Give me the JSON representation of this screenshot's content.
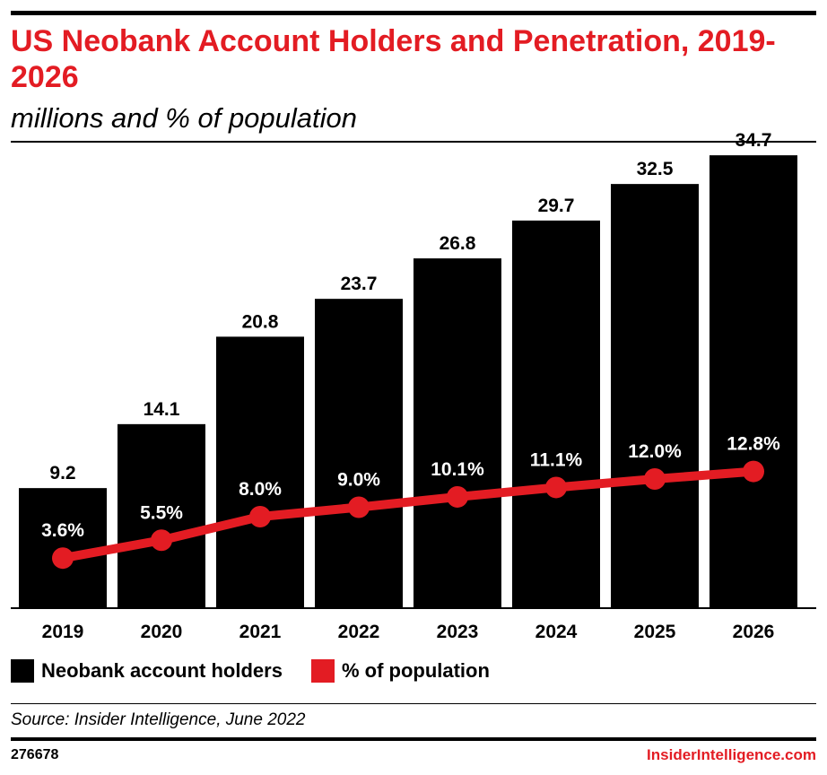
{
  "header": {
    "title": "US Neobank Account Holders and Penetration, 2019-2026",
    "subtitle": "millions and % of population"
  },
  "chart_data": {
    "type": "bar",
    "title": "US Neobank Account Holders and Penetration, 2019-2026",
    "subtitle": "millions and % of population",
    "categories": [
      "2019",
      "2020",
      "2021",
      "2022",
      "2023",
      "2024",
      "2025",
      "2026"
    ],
    "series": [
      {
        "name": "Neobank account holders",
        "type": "bar",
        "color": "#000000",
        "values": [
          9.2,
          14.1,
          20.8,
          23.7,
          26.8,
          29.7,
          32.5,
          34.7
        ],
        "labels": [
          "9.2",
          "14.1",
          "20.8",
          "23.7",
          "26.8",
          "29.7",
          "32.5",
          "34.7"
        ]
      },
      {
        "name": "% of population",
        "type": "line",
        "color": "#e31c23",
        "values": [
          3.6,
          5.5,
          8.0,
          9.0,
          10.1,
          11.1,
          12.0,
          12.8
        ],
        "labels": [
          "3.6%",
          "5.5%",
          "8.0%",
          "9.0%",
          "10.1%",
          "11.1%",
          "12.0%",
          "12.8%"
        ]
      }
    ],
    "grid": false,
    "legend_placement": "bottom-left"
  },
  "legend": {
    "items": [
      {
        "label": "Neobank account holders",
        "color": "#000000"
      },
      {
        "label": "% of population",
        "color": "#e31c23"
      }
    ]
  },
  "footer": {
    "source": "Source: Insider Intelligence, June 2022",
    "chart_id": "276678",
    "brand": "InsiderIntelligence.com"
  }
}
